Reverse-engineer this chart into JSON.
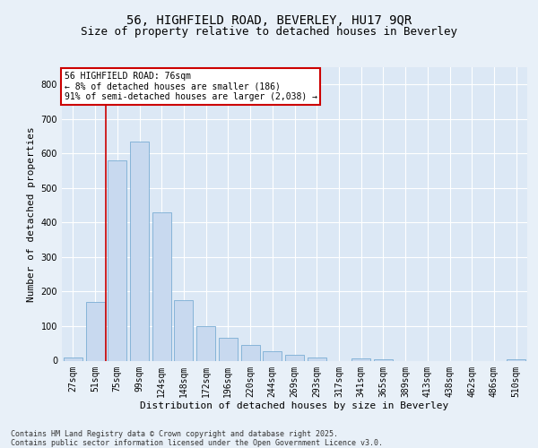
{
  "title1": "56, HIGHFIELD ROAD, BEVERLEY, HU17 9QR",
  "title2": "Size of property relative to detached houses in Beverley",
  "xlabel": "Distribution of detached houses by size in Beverley",
  "ylabel": "Number of detached properties",
  "categories": [
    "27sqm",
    "51sqm",
    "75sqm",
    "99sqm",
    "124sqm",
    "148sqm",
    "172sqm",
    "196sqm",
    "220sqm",
    "244sqm",
    "269sqm",
    "293sqm",
    "317sqm",
    "341sqm",
    "365sqm",
    "389sqm",
    "413sqm",
    "438sqm",
    "462sqm",
    "486sqm",
    "510sqm"
  ],
  "values": [
    10,
    170,
    580,
    635,
    430,
    175,
    100,
    65,
    45,
    28,
    18,
    10,
    0,
    6,
    5,
    0,
    0,
    0,
    0,
    0,
    4
  ],
  "bar_color": "#c8d9ef",
  "bar_edge_color": "#7aadd4",
  "marker_line_color": "#cc0000",
  "annotation_text": "56 HIGHFIELD ROAD: 76sqm\n← 8% of detached houses are smaller (186)\n91% of semi-detached houses are larger (2,038) →",
  "annotation_box_color": "#ffffff",
  "annotation_box_edge": "#cc0000",
  "ylim": [
    0,
    850
  ],
  "yticks": [
    0,
    100,
    200,
    300,
    400,
    500,
    600,
    700,
    800
  ],
  "background_color": "#dce8f5",
  "fig_background_color": "#e8f0f8",
  "footer_text": "Contains HM Land Registry data © Crown copyright and database right 2025.\nContains public sector information licensed under the Open Government Licence v3.0.",
  "title_fontsize": 10,
  "subtitle_fontsize": 9,
  "axis_label_fontsize": 8,
  "tick_fontsize": 7,
  "footer_fontsize": 6
}
